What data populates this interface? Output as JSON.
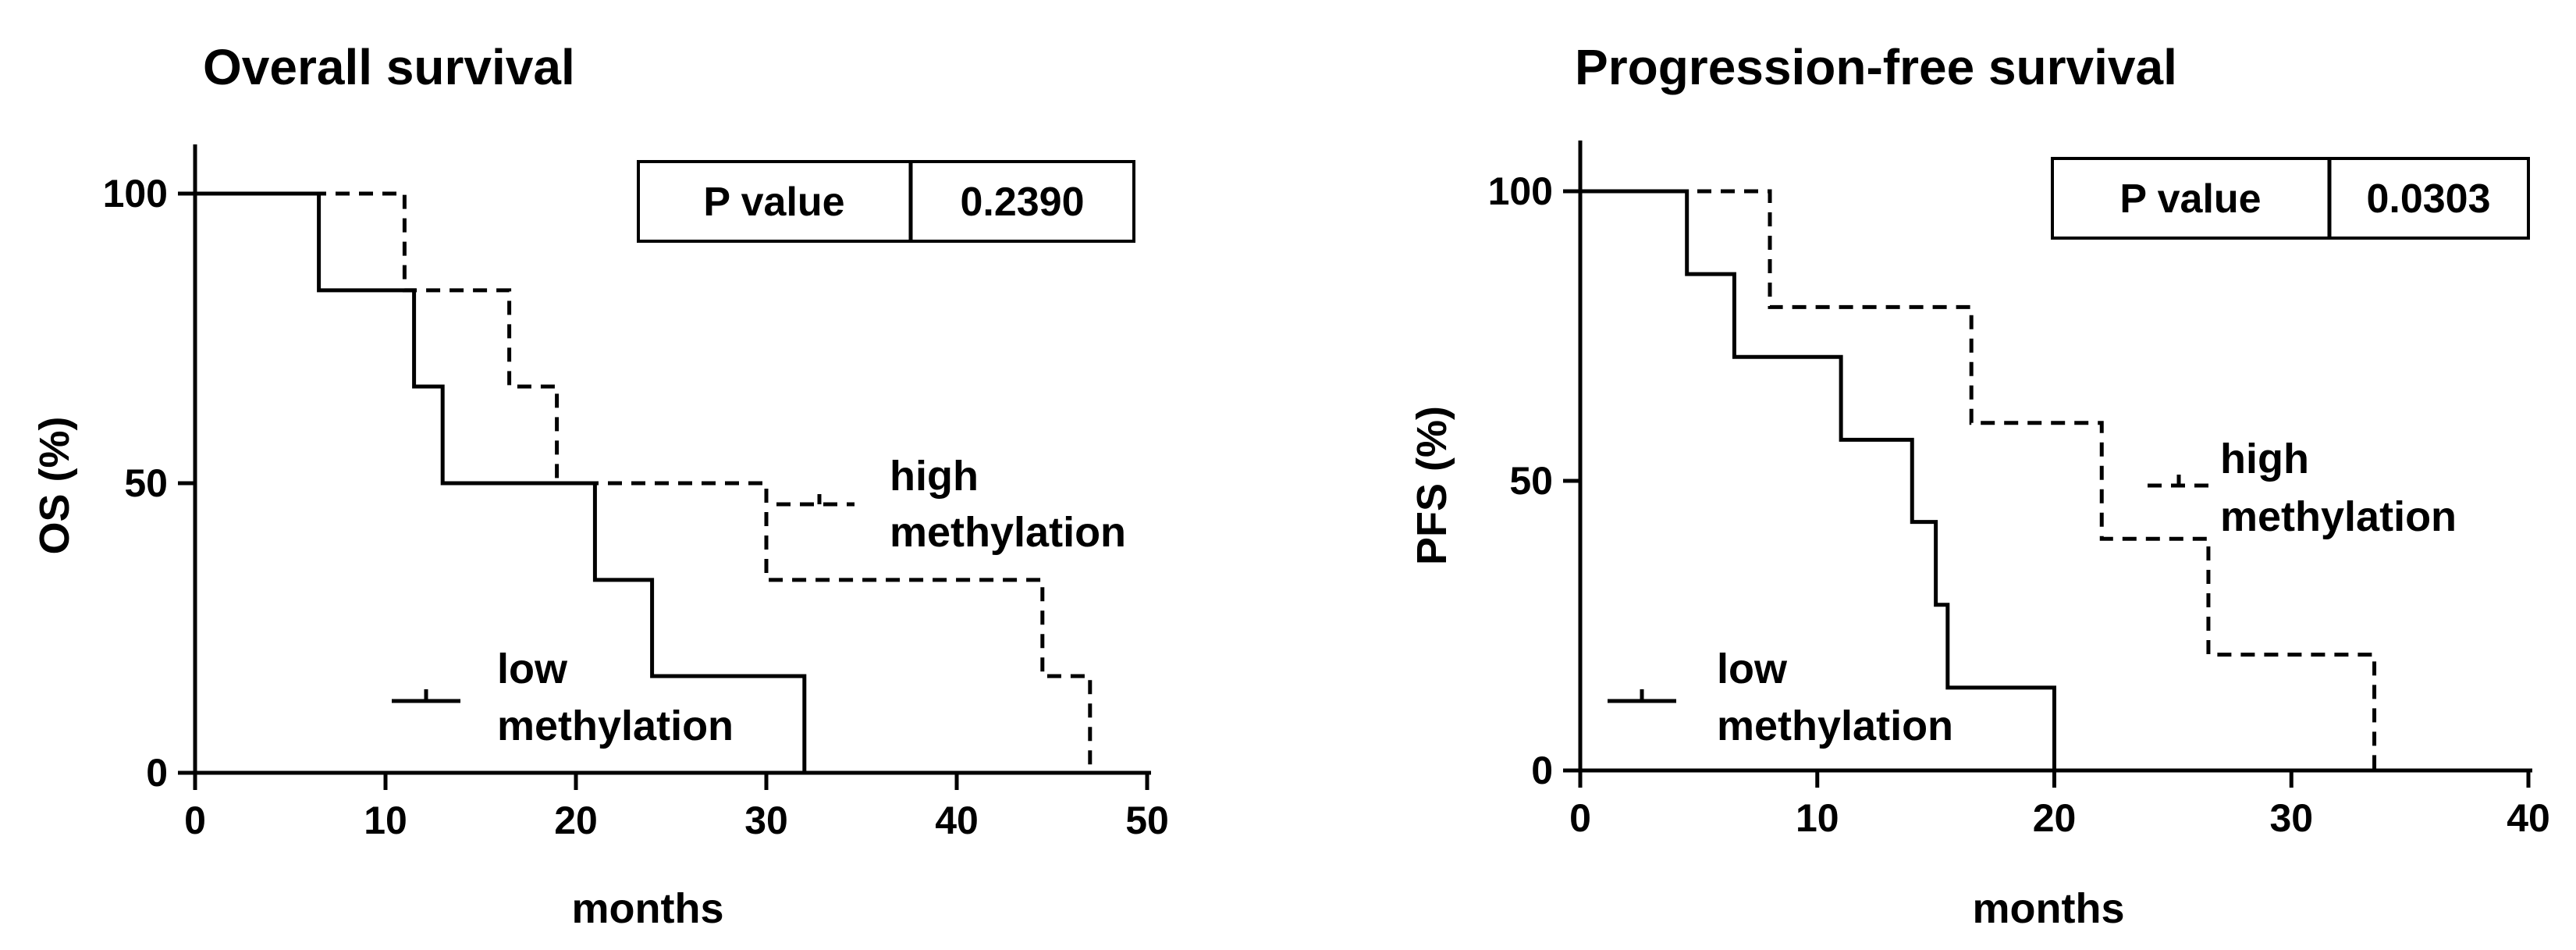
{
  "chart_data": [
    {
      "type": "line",
      "subtype": "kaplan-meier step",
      "title": "Overall survival",
      "xlabel": "months",
      "ylabel": "OS (%)",
      "xlim": [
        0,
        50
      ],
      "ylim": [
        0,
        110
      ],
      "xticks": [
        0,
        10,
        20,
        30,
        40,
        50
      ],
      "yticks": [
        0,
        50,
        100
      ],
      "p_value": {
        "label": "P value",
        "value": "0.2390"
      },
      "series": [
        {
          "name": "low methylation",
          "legend_lines": [
            "low",
            "methylation"
          ],
          "style": "solid",
          "x": [
            0,
            6.5,
            11.5,
            13,
            21,
            24,
            32
          ],
          "y": [
            100,
            83.3,
            66.7,
            50,
            33.3,
            16.7,
            0
          ],
          "censored": []
        },
        {
          "name": "high methylation",
          "legend_lines": [
            "high",
            "methylation"
          ],
          "style": "dashed",
          "x": [
            0,
            11,
            16.5,
            19,
            30,
            44.5,
            47
          ],
          "y": [
            100,
            83.3,
            66.7,
            50,
            33.3,
            16.7,
            0
          ],
          "censored": []
        }
      ],
      "grid": false
    },
    {
      "type": "line",
      "subtype": "kaplan-meier step",
      "title": "Progression-free survival",
      "xlabel": "months",
      "ylabel": "PFS (%)",
      "xlim": [
        0,
        40
      ],
      "ylim": [
        0,
        110
      ],
      "xticks": [
        0,
        10,
        20,
        30,
        40
      ],
      "yticks": [
        0,
        50,
        100
      ],
      "p_value": {
        "label": "P value",
        "value": "0.0303"
      },
      "series": [
        {
          "name": "low methylation",
          "legend_lines": [
            "low",
            "methylation"
          ],
          "style": "solid",
          "x": [
            0,
            4.5,
            6.5,
            11,
            14,
            15,
            15.5,
            20
          ],
          "y": [
            100,
            85.7,
            71.4,
            57.1,
            42.9,
            28.6,
            14.3,
            0
          ],
          "censored": []
        },
        {
          "name": "high methylation",
          "legend_lines": [
            "high",
            "methylation"
          ],
          "style": "dashed",
          "x": [
            0,
            8,
            16.5,
            22,
            26.5,
            33.5
          ],
          "y": [
            100,
            80,
            60,
            40,
            20,
            0
          ],
          "censored": []
        }
      ],
      "grid": false
    }
  ]
}
